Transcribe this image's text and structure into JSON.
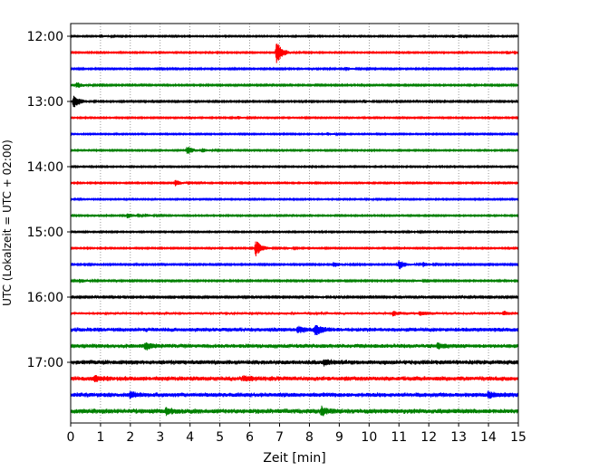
{
  "chart_data": {
    "type": "line",
    "title": "",
    "xlabel": "Zeit  [min]",
    "ylabel": "UTC (Lokalzeit = UTC + 02:00)",
    "xlim": [
      0,
      15
    ],
    "x_ticks": [
      "0",
      "1",
      "2",
      "3",
      "4",
      "5",
      "6",
      "7",
      "8",
      "9",
      "10",
      "11",
      "12",
      "13",
      "14",
      "15"
    ],
    "y_ticks": [
      "12:00",
      "13:00",
      "14:00",
      "15:00",
      "16:00",
      "17:00"
    ],
    "grid": "vertical-dotted",
    "legend": "none",
    "trace_interval_minutes": 15,
    "trace_colors": [
      "#000000",
      "#ff0000",
      "#0000ff",
      "#008000"
    ],
    "series": [
      {
        "start": "12:00",
        "noise": 0.8,
        "events": [
          {
            "x": 1.0,
            "amp": 1.5
          },
          {
            "x": 12.8,
            "amp": 1.6
          }
        ]
      },
      {
        "start": "12:15",
        "noise": 0.8,
        "events": [
          {
            "x": 6.9,
            "amp": 13
          },
          {
            "x": 14.6,
            "amp": 1.8
          }
        ]
      },
      {
        "start": "12:30",
        "noise": 0.9,
        "events": [
          {
            "x": 9.2,
            "amp": 2.2
          }
        ]
      },
      {
        "start": "12:45",
        "noise": 0.9,
        "events": [
          {
            "x": 0.2,
            "amp": 3.5
          }
        ]
      },
      {
        "start": "13:00",
        "noise": 0.9,
        "events": [
          {
            "x": 0.1,
            "amp": 8
          },
          {
            "x": 9.8,
            "amp": 1.8
          }
        ]
      },
      {
        "start": "13:15",
        "noise": 0.8,
        "events": [
          {
            "x": 5.6,
            "amp": 1.4
          }
        ]
      },
      {
        "start": "13:30",
        "noise": 0.8,
        "events": [
          {
            "x": 8.6,
            "amp": 1.6
          }
        ]
      },
      {
        "start": "13:45",
        "noise": 0.8,
        "events": [
          {
            "x": 3.9,
            "amp": 5
          },
          {
            "x": 4.4,
            "amp": 2
          }
        ]
      },
      {
        "start": "14:00",
        "noise": 0.8,
        "events": [
          {
            "x": 14.8,
            "amp": 1.3
          }
        ]
      },
      {
        "start": "14:15",
        "noise": 0.8,
        "events": [
          {
            "x": 3.5,
            "amp": 3.5
          }
        ]
      },
      {
        "start": "14:30",
        "noise": 0.8,
        "events": [
          {
            "x": 9.9,
            "amp": 1.5
          }
        ]
      },
      {
        "start": "14:45",
        "noise": 0.8,
        "events": [
          {
            "x": 1.9,
            "amp": 2.8
          },
          {
            "x": 2.5,
            "amp": 1.6
          }
        ]
      },
      {
        "start": "15:00",
        "noise": 0.8,
        "events": [
          {
            "x": 11.3,
            "amp": 1.6
          }
        ]
      },
      {
        "start": "15:15",
        "noise": 0.8,
        "events": [
          {
            "x": 6.2,
            "amp": 9
          },
          {
            "x": 7.2,
            "amp": 1.2
          }
        ]
      },
      {
        "start": "15:30",
        "noise": 0.9,
        "events": [
          {
            "x": 8.8,
            "amp": 3.5
          },
          {
            "x": 11.0,
            "amp": 5.5
          },
          {
            "x": 11.8,
            "amp": 2.5
          }
        ]
      },
      {
        "start": "15:45",
        "noise": 0.9,
        "events": [
          {
            "x": 0.3,
            "amp": 2.2
          },
          {
            "x": 11.5,
            "amp": 1.2
          }
        ]
      },
      {
        "start": "16:00",
        "noise": 1.0,
        "events": [
          {
            "x": 8.2,
            "amp": 1.4
          }
        ]
      },
      {
        "start": "16:15",
        "noise": 1.6,
        "events": [
          {
            "x": 10.8,
            "amp": 2.2
          },
          {
            "x": 11.7,
            "amp": 2.2
          },
          {
            "x": 14.5,
            "amp": 2.2
          }
        ]
      },
      {
        "start": "16:30",
        "noise": 2.6,
        "events": [
          {
            "x": 8.2,
            "amp": 5.5
          },
          {
            "x": 7.6,
            "amp": 3.5
          }
        ]
      },
      {
        "start": "16:45",
        "noise": 2.6,
        "events": [
          {
            "x": 2.5,
            "amp": 3.5
          },
          {
            "x": 12.3,
            "amp": 2.5
          }
        ]
      },
      {
        "start": "17:00",
        "noise": 2.8,
        "events": [
          {
            "x": 8.5,
            "amp": 3
          }
        ]
      },
      {
        "start": "17:15",
        "noise": 2.8,
        "events": [
          {
            "x": 0.8,
            "amp": 3
          },
          {
            "x": 5.8,
            "amp": 3
          }
        ]
      },
      {
        "start": "17:30",
        "noise": 2.8,
        "events": [
          {
            "x": 2.0,
            "amp": 3
          },
          {
            "x": 14.0,
            "amp": 3
          }
        ]
      },
      {
        "start": "17:45",
        "noise": 3.0,
        "events": [
          {
            "x": 3.2,
            "amp": 3
          },
          {
            "x": 8.4,
            "amp": 4
          }
        ]
      }
    ]
  }
}
